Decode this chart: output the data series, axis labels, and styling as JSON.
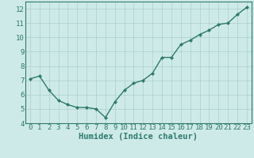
{
  "x": [
    0,
    1,
    2,
    3,
    4,
    5,
    6,
    7,
    8,
    9,
    10,
    11,
    12,
    13,
    14,
    15,
    16,
    17,
    18,
    19,
    20,
    21,
    22,
    23
  ],
  "y": [
    7.1,
    7.3,
    6.3,
    5.6,
    5.3,
    5.1,
    5.1,
    5.0,
    4.4,
    5.5,
    6.3,
    6.8,
    7.0,
    7.5,
    8.6,
    8.6,
    9.5,
    9.8,
    10.2,
    10.5,
    10.9,
    11.0,
    11.6,
    12.1
  ],
  "xlabel": "Humidex (Indice chaleur)",
  "ylim": [
    4,
    12.5
  ],
  "xlim": [
    -0.5,
    23.5
  ],
  "yticks": [
    4,
    5,
    6,
    7,
    8,
    9,
    10,
    11,
    12
  ],
  "xticks": [
    0,
    1,
    2,
    3,
    4,
    5,
    6,
    7,
    8,
    9,
    10,
    11,
    12,
    13,
    14,
    15,
    16,
    17,
    18,
    19,
    20,
    21,
    22,
    23
  ],
  "line_color": "#2d7a6e",
  "marker_color": "#2d7a6e",
  "bg_color": "#ceeae8",
  "grid_color": "#aacfcc",
  "spine_color": "#2d7a6e",
  "xlabel_fontsize": 7.5,
  "tick_fontsize": 6.5,
  "label_color": "#2d7a6e"
}
